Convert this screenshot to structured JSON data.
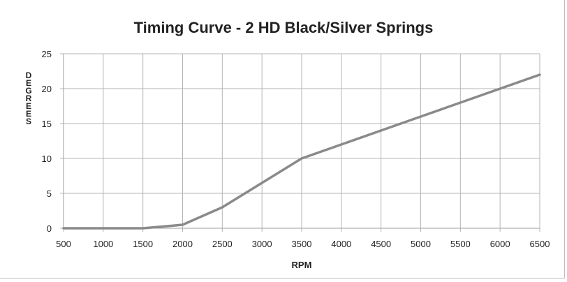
{
  "chart_data": {
    "type": "line",
    "title": "Timing Curve - 2 HD Black/Silver Springs",
    "xlabel": "RPM",
    "ylabel": "DEGREES",
    "x": [
      500,
      1000,
      1500,
      2000,
      2500,
      3000,
      3500,
      4000,
      4500,
      5000,
      5500,
      6000,
      6500
    ],
    "series": [
      {
        "values": [
          0,
          0,
          0,
          0.5,
          3,
          6.5,
          10,
          12,
          14,
          16,
          18,
          20,
          22
        ]
      }
    ],
    "xlim": [
      500,
      6500
    ],
    "ylim": [
      0,
      25
    ],
    "x_ticks": [
      500,
      1000,
      1500,
      2000,
      2500,
      3000,
      3500,
      4000,
      4500,
      5000,
      5500,
      6000,
      6500
    ],
    "y_ticks": [
      0,
      5,
      10,
      15,
      20,
      25
    ],
    "grid": true,
    "legend": "none",
    "colors": {
      "line": "#8a8a8a",
      "grid": "#b5b5b5",
      "text": "#222222"
    }
  }
}
